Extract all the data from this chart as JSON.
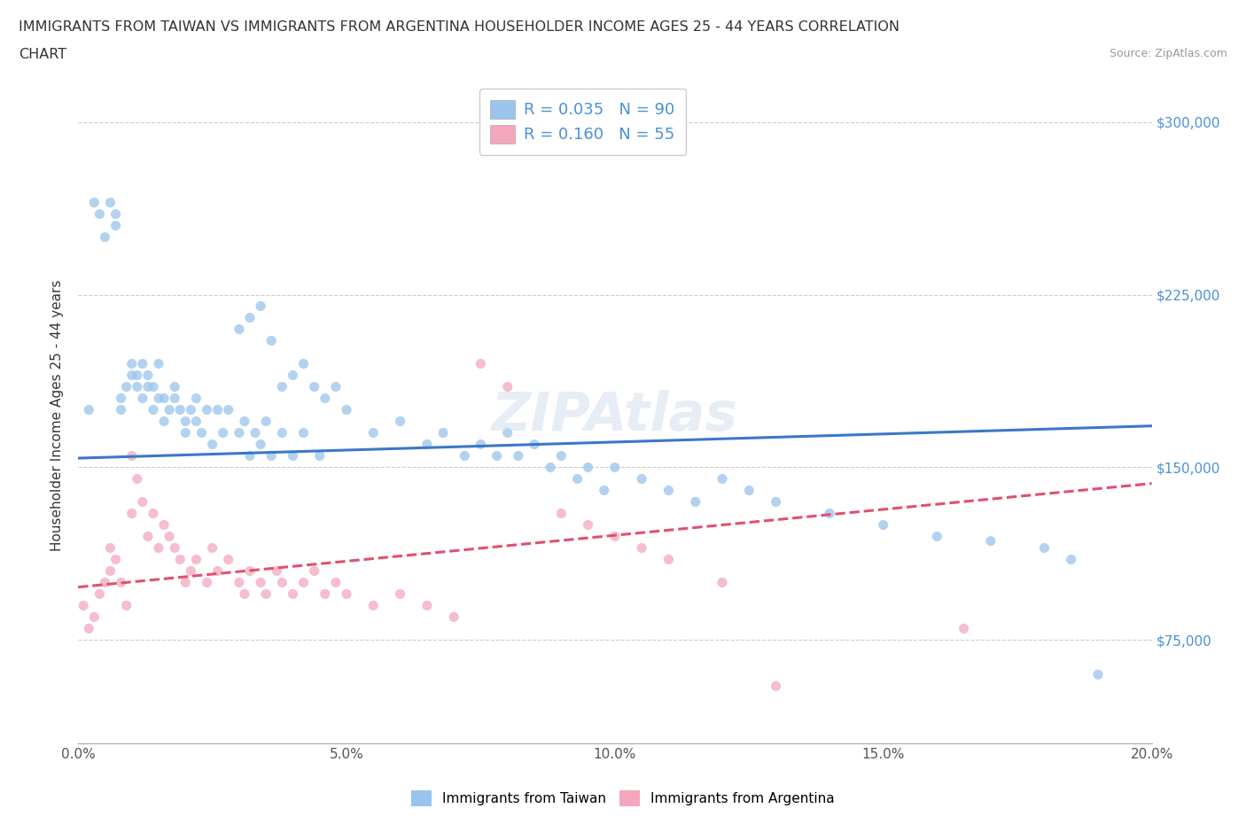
{
  "title_line1": "IMMIGRANTS FROM TAIWAN VS IMMIGRANTS FROM ARGENTINA HOUSEHOLDER INCOME AGES 25 - 44 YEARS CORRELATION",
  "title_line2": "CHART",
  "source_text": "Source: ZipAtlas.com",
  "ylabel": "Householder Income Ages 25 - 44 years",
  "xmin": 0.0,
  "xmax": 0.2,
  "ymin": 30000,
  "ymax": 315000,
  "yticks": [
    75000,
    150000,
    225000,
    300000
  ],
  "ytick_labels": [
    "$75,000",
    "$150,000",
    "$225,000",
    "$300,000"
  ],
  "xticks": [
    0.0,
    0.05,
    0.1,
    0.15,
    0.2
  ],
  "xtick_labels": [
    "0.0%",
    "5.0%",
    "10.0%",
    "15.0%",
    "20.0%"
  ],
  "taiwan_color": "#9AC4EC",
  "argentina_color": "#F4A7BC",
  "taiwan_line_color": "#3A78C9",
  "argentina_line_color": "#E05070",
  "taiwan_R": 0.035,
  "taiwan_N": 90,
  "argentina_R": 0.16,
  "argentina_N": 55,
  "watermark": "ZIPAtlas",
  "taiwan_trend_x0": 0.0,
  "taiwan_trend_y0": 154000,
  "taiwan_trend_x1": 0.2,
  "taiwan_trend_y1": 168000,
  "argentina_trend_x0": 0.0,
  "argentina_trend_y0": 98000,
  "argentina_trend_x1": 0.2,
  "argentina_trend_y1": 143000,
  "taiwan_x": [
    0.002,
    0.003,
    0.004,
    0.005,
    0.006,
    0.007,
    0.007,
    0.008,
    0.008,
    0.009,
    0.01,
    0.01,
    0.011,
    0.011,
    0.012,
    0.012,
    0.013,
    0.013,
    0.014,
    0.014,
    0.015,
    0.015,
    0.016,
    0.016,
    0.017,
    0.018,
    0.018,
    0.019,
    0.02,
    0.02,
    0.021,
    0.022,
    0.022,
    0.023,
    0.024,
    0.025,
    0.026,
    0.027,
    0.028,
    0.03,
    0.031,
    0.032,
    0.033,
    0.034,
    0.035,
    0.036,
    0.038,
    0.04,
    0.042,
    0.045,
    0.03,
    0.032,
    0.034,
    0.036,
    0.038,
    0.04,
    0.042,
    0.044,
    0.046,
    0.048,
    0.05,
    0.055,
    0.06,
    0.065,
    0.068,
    0.072,
    0.075,
    0.078,
    0.08,
    0.082,
    0.085,
    0.088,
    0.09,
    0.093,
    0.095,
    0.098,
    0.1,
    0.105,
    0.11,
    0.115,
    0.12,
    0.125,
    0.13,
    0.14,
    0.15,
    0.16,
    0.17,
    0.18,
    0.185,
    0.19
  ],
  "taiwan_y": [
    175000,
    265000,
    260000,
    250000,
    265000,
    255000,
    260000,
    175000,
    180000,
    185000,
    190000,
    195000,
    185000,
    190000,
    180000,
    195000,
    185000,
    190000,
    175000,
    185000,
    180000,
    195000,
    170000,
    180000,
    175000,
    180000,
    185000,
    175000,
    165000,
    170000,
    175000,
    180000,
    170000,
    165000,
    175000,
    160000,
    175000,
    165000,
    175000,
    165000,
    170000,
    155000,
    165000,
    160000,
    170000,
    155000,
    165000,
    155000,
    165000,
    155000,
    210000,
    215000,
    220000,
    205000,
    185000,
    190000,
    195000,
    185000,
    180000,
    185000,
    175000,
    165000,
    170000,
    160000,
    165000,
    155000,
    160000,
    155000,
    165000,
    155000,
    160000,
    150000,
    155000,
    145000,
    150000,
    140000,
    150000,
    145000,
    140000,
    135000,
    145000,
    140000,
    135000,
    130000,
    125000,
    120000,
    118000,
    115000,
    110000,
    60000
  ],
  "argentina_x": [
    0.001,
    0.002,
    0.003,
    0.004,
    0.005,
    0.006,
    0.006,
    0.007,
    0.008,
    0.009,
    0.01,
    0.01,
    0.011,
    0.012,
    0.013,
    0.014,
    0.015,
    0.016,
    0.017,
    0.018,
    0.019,
    0.02,
    0.021,
    0.022,
    0.024,
    0.025,
    0.026,
    0.028,
    0.03,
    0.031,
    0.032,
    0.034,
    0.035,
    0.037,
    0.038,
    0.04,
    0.042,
    0.044,
    0.046,
    0.048,
    0.05,
    0.055,
    0.06,
    0.065,
    0.07,
    0.075,
    0.08,
    0.09,
    0.095,
    0.1,
    0.105,
    0.11,
    0.12,
    0.13,
    0.165
  ],
  "argentina_y": [
    90000,
    80000,
    85000,
    95000,
    100000,
    105000,
    115000,
    110000,
    100000,
    90000,
    130000,
    155000,
    145000,
    135000,
    120000,
    130000,
    115000,
    125000,
    120000,
    115000,
    110000,
    100000,
    105000,
    110000,
    100000,
    115000,
    105000,
    110000,
    100000,
    95000,
    105000,
    100000,
    95000,
    105000,
    100000,
    95000,
    100000,
    105000,
    95000,
    100000,
    95000,
    90000,
    95000,
    90000,
    85000,
    195000,
    185000,
    130000,
    125000,
    120000,
    115000,
    110000,
    100000,
    55000,
    80000
  ]
}
